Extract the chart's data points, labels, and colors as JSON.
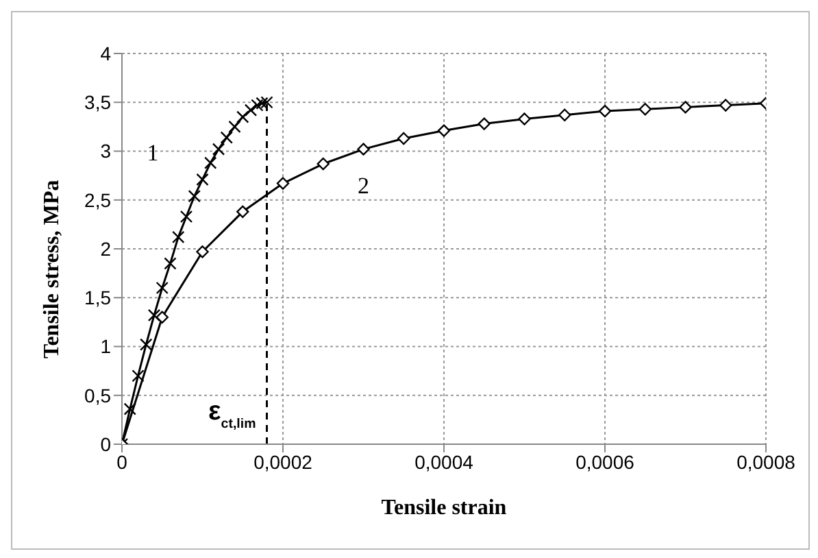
{
  "chart_data": {
    "type": "line",
    "xlabel": "Tensile strain",
    "ylabel": "Tensile stress, MPa",
    "xlim": [
      0,
      0.0008
    ],
    "ylim": [
      0,
      4
    ],
    "xticks": [
      0,
      {
        "value": 0.0002,
        "label": "0,0002"
      },
      {
        "value": 0.0004,
        "label": "0,0004"
      },
      {
        "value": 0.0006,
        "label": "0,0006"
      },
      {
        "value": 0.0008,
        "label": "0,0008"
      }
    ],
    "yticks": [
      0,
      {
        "value": 0.5,
        "label": "0,5"
      },
      1,
      {
        "value": 1.5,
        "label": "1,5"
      },
      2,
      {
        "value": 2.5,
        "label": "2,5"
      },
      3,
      {
        "value": 3.5,
        "label": "3,5"
      },
      4
    ],
    "grid": true,
    "series": [
      {
        "name": "1",
        "color": "#000000",
        "marker": "cross",
        "x": [
          0,
          1e-05,
          2e-05,
          3e-05,
          4e-05,
          5e-05,
          6e-05,
          7e-05,
          8e-05,
          9e-05,
          0.0001,
          0.00011,
          0.00012,
          0.00013,
          0.00014,
          0.00015,
          0.00016,
          0.000168,
          0.000174,
          0.00018
        ],
        "values": [
          0,
          0.36,
          0.7,
          1.02,
          1.32,
          1.6,
          1.85,
          2.12,
          2.33,
          2.54,
          2.71,
          2.88,
          3.02,
          3.14,
          3.25,
          3.35,
          3.42,
          3.47,
          3.49,
          3.5
        ]
      },
      {
        "name": "2",
        "color": "#000000",
        "marker": "diamond",
        "x": [
          0,
          5e-05,
          0.0001,
          0.00015,
          0.0002,
          0.00025,
          0.0003,
          0.00035,
          0.0004,
          0.00045,
          0.0005,
          0.00055,
          0.0006,
          0.00065,
          0.0007,
          0.00075,
          0.0008
        ],
        "values": [
          0,
          1.3,
          1.97,
          2.38,
          2.67,
          2.87,
          3.02,
          3.13,
          3.21,
          3.28,
          3.33,
          3.37,
          3.41,
          3.43,
          3.45,
          3.47,
          3.49
        ]
      }
    ],
    "ref_lines": [
      {
        "axis": "x",
        "value": 0.00018,
        "label": "ε$_{ct,lim}$",
        "line_style": "dashed",
        "color": "#000000"
      }
    ]
  }
}
